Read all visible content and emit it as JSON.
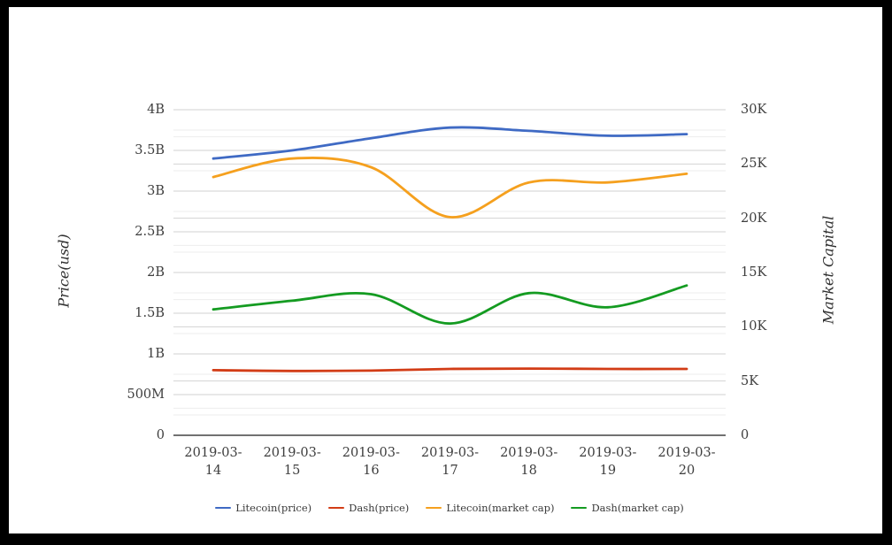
{
  "chart_data": {
    "type": "line",
    "title": "",
    "x": [
      "2019-03-14",
      "2019-03-15",
      "2019-03-16",
      "2019-03-17",
      "2019-03-18",
      "2019-03-19",
      "2019-03-20"
    ],
    "x_labels": [
      {
        "line1": "2019-03-",
        "line2": "14"
      },
      {
        "line1": "2019-03-",
        "line2": "15"
      },
      {
        "line1": "2019-03-",
        "line2": "16"
      },
      {
        "line1": "2019-03-",
        "line2": "17"
      },
      {
        "line1": "2019-03-",
        "line2": "18"
      },
      {
        "line1": "2019-03-",
        "line2": "19"
      },
      {
        "line1": "2019-03-",
        "line2": "20"
      }
    ],
    "left_axis": {
      "title": "Price(usd)",
      "min": 0,
      "max_units": 4,
      "unit": "B",
      "tick_labels": [
        "4B",
        "3.5B",
        "3B",
        "2.5B",
        "2B",
        "1.5B",
        "1B",
        "500M",
        "0"
      ]
    },
    "right_axis": {
      "title": "Market Capital",
      "min": 0,
      "max_units": 30,
      "unit": "K",
      "tick_labels": [
        "30K",
        "25K",
        "20K",
        "15K",
        "10K",
        "5K",
        "0"
      ]
    },
    "series": [
      {
        "name": "Litecoin(price)",
        "axis": "left",
        "color": "#3f6ac4",
        "values": [
          3.4,
          3.5,
          3.65,
          3.78,
          3.74,
          3.68,
          3.7
        ]
      },
      {
        "name": "Dash(price)",
        "axis": "left",
        "color": "#d23c16",
        "values": [
          0.8,
          0.79,
          0.795,
          0.815,
          0.82,
          0.815,
          0.815
        ]
      },
      {
        "name": "Litecoin(market cap)",
        "axis": "right",
        "color": "#f5a01e",
        "values": [
          23.8,
          25.5,
          24.7,
          20.1,
          23.3,
          23.3,
          24.1
        ]
      },
      {
        "name": "Dash(market cap)",
        "axis": "right",
        "color": "#149b21",
        "values": [
          11.6,
          12.4,
          13.0,
          10.3,
          13.1,
          11.8,
          13.8
        ]
      }
    ],
    "grid": true,
    "legend_position": "bottom"
  },
  "palette": {
    "background": "#ffffff",
    "frame": "#000000",
    "gridline_major": "#d2d2d2",
    "gridline_minor": "#ededed",
    "axis_line": "#424242",
    "text": "#3e3e3e"
  }
}
